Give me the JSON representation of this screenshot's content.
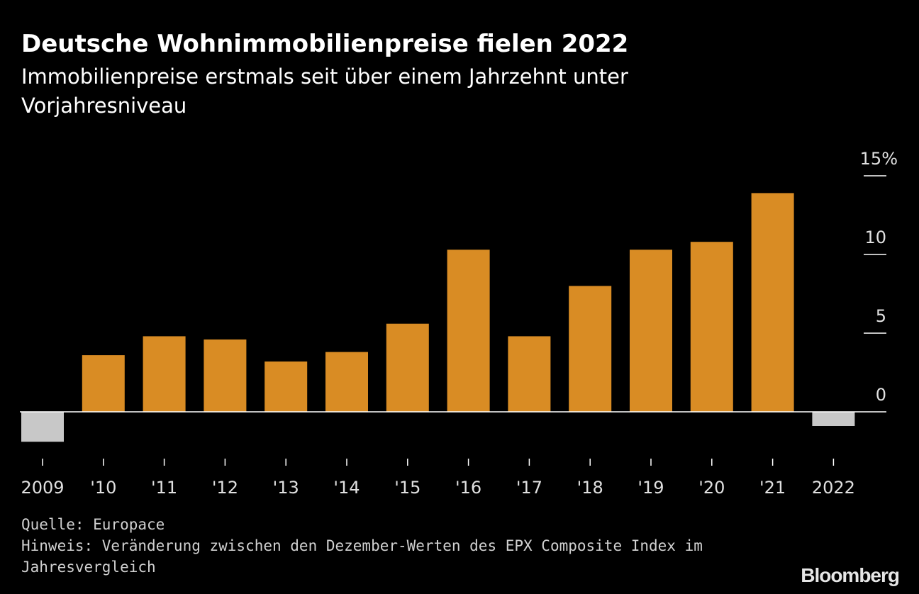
{
  "colors": {
    "positive": "#d98c24",
    "negative": "#c8c8c8",
    "axis": "#ffffff",
    "text": "#e0e0e0"
  },
  "chart_data": {
    "type": "bar",
    "title": "Deutsche Wohnimmobilienpreise fielen 2022",
    "subtitle": "Immobilienpreise erstmals seit über einem Jahrzehnt unter Vorjahresniveau",
    "categories": [
      "2009",
      "'10",
      "'11",
      "'12",
      "'13",
      "'14",
      "'15",
      "'16",
      "'17",
      "'18",
      "'19",
      "'20",
      "'21",
      "2022"
    ],
    "values": [
      -1.9,
      3.6,
      4.8,
      4.6,
      3.2,
      3.8,
      5.6,
      10.3,
      4.8,
      8.0,
      10.3,
      10.8,
      13.9,
      -0.9
    ],
    "yticks": [
      0,
      5,
      10,
      15
    ],
    "ytick_labels": [
      "0",
      "5",
      "10",
      "15%"
    ],
    "ylim": [
      -2.5,
      15
    ],
    "grid": false,
    "legend": "none",
    "xlabel": "",
    "ylabel": ""
  },
  "source": "Quelle: Europace",
  "note_line1": "Hinweis: Veränderung zwischen den Dezember-Werten des EPX Composite Index im",
  "note_line2": "Jahresvergleich",
  "logo": "Bloomberg"
}
